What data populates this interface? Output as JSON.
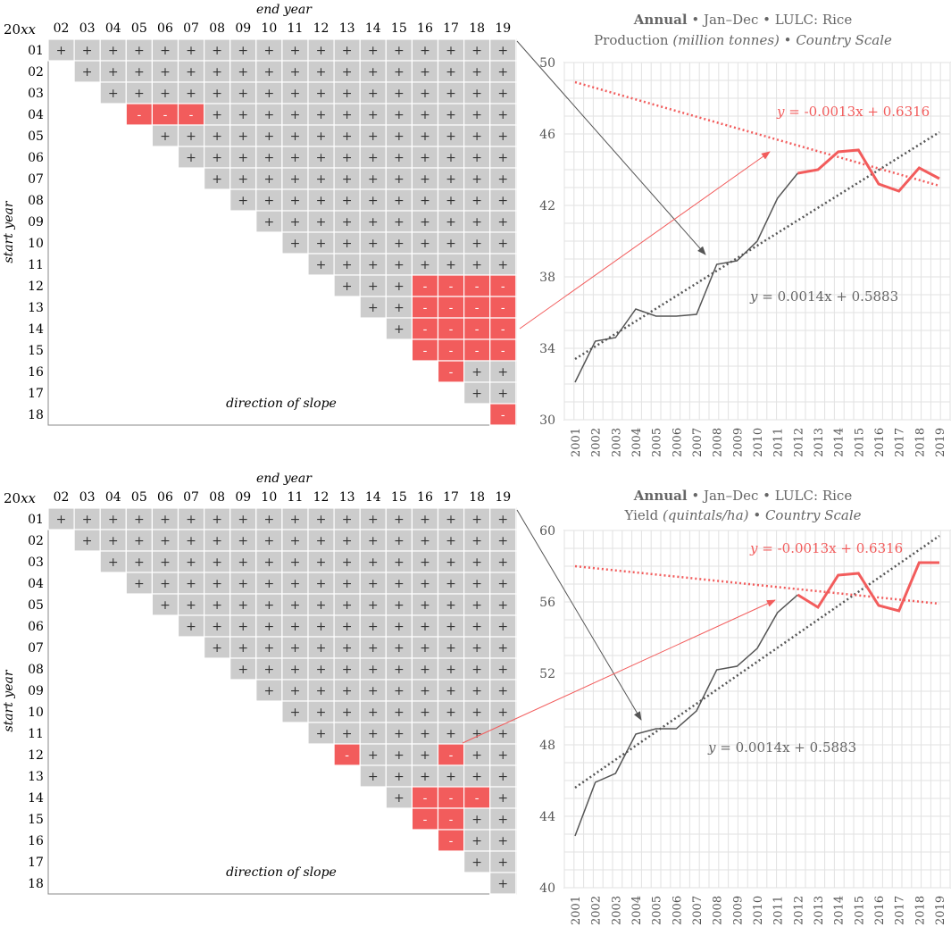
{
  "corner_label": "20",
  "corner_label_italic": "xx",
  "chart_data": [
    {
      "type": "heatmap",
      "title": "direction of slope",
      "xlabel": "end year",
      "ylabel": "start year",
      "x_ticks": [
        "02",
        "03",
        "04",
        "05",
        "06",
        "07",
        "08",
        "09",
        "10",
        "11",
        "12",
        "13",
        "14",
        "15",
        "16",
        "17",
        "18",
        "19"
      ],
      "y_ticks": [
        "01",
        "02",
        "03",
        "04",
        "05",
        "06",
        "07",
        "08",
        "09",
        "10",
        "11",
        "12",
        "13",
        "14",
        "15",
        "16",
        "17",
        "18"
      ],
      "neg_cells": [
        [
          4,
          5
        ],
        [
          4,
          6
        ],
        [
          4,
          7
        ],
        [
          12,
          16
        ],
        [
          12,
          17
        ],
        [
          12,
          18
        ],
        [
          12,
          19
        ],
        [
          13,
          16
        ],
        [
          13,
          17
        ],
        [
          13,
          18
        ],
        [
          13,
          19
        ],
        [
          14,
          16
        ],
        [
          14,
          17
        ],
        [
          14,
          18
        ],
        [
          14,
          19
        ],
        [
          15,
          16
        ],
        [
          15,
          17
        ],
        [
          15,
          18
        ],
        [
          15,
          19
        ],
        [
          16,
          17
        ],
        [
          18,
          19
        ]
      ],
      "pos_symbol": "+",
      "neg_symbol": "-",
      "colors": {
        "positive": "#cccccc",
        "negative": "#f25c5c"
      }
    },
    {
      "type": "line",
      "title_bold": "Annual",
      "title_rest": "• Jan–Dec • LULC: Rice",
      "subtitle_plain": "Production",
      "subtitle_italic": "(million tonnes)",
      "subtitle_sep": "•",
      "subtitle_italic2": "Country Scale",
      "x": [
        "2001",
        "2002",
        "2003",
        "2004",
        "2005",
        "2006",
        "2007",
        "2008",
        "2009",
        "2010",
        "2011",
        "2012",
        "2013",
        "2014",
        "2015",
        "2016",
        "2017",
        "2018",
        "2019"
      ],
      "y_ticks": [
        "30",
        "34",
        "38",
        "42",
        "46",
        "50"
      ],
      "ylim": [
        30,
        50
      ],
      "series": [
        {
          "name": "production",
          "x": [
            2001,
            2002,
            2003,
            2004,
            2005,
            2006,
            2007,
            2008,
            2009,
            2010,
            2011,
            2012,
            2013,
            2014,
            2015,
            2016,
            2017,
            2018,
            2019
          ],
          "values": [
            32.1,
            34.4,
            34.6,
            36.2,
            35.8,
            35.8,
            35.9,
            38.7,
            38.9,
            40.0,
            42.4,
            43.8,
            44.0,
            45.0,
            45.1,
            43.2,
            42.8,
            44.1,
            43.5
          ]
        },
        {
          "name": "trend-up",
          "x": [
            2001,
            2019
          ],
          "values": [
            33.4,
            46.1
          ]
        },
        {
          "name": "trend-down",
          "x": [
            2001,
            2019
          ],
          "values": [
            48.9,
            43.1
          ]
        }
      ],
      "eq_red": "-0.0013x + 0.6316",
      "eq_black": "0.0014x + 0.5883",
      "eq_var": "y = ",
      "colors": {
        "main": "#555555",
        "highlight": "#f25c5c",
        "trend": "#555555"
      }
    },
    {
      "type": "heatmap",
      "title": "direction of slope",
      "xlabel": "end year",
      "ylabel": "start year",
      "x_ticks": [
        "02",
        "03",
        "04",
        "05",
        "06",
        "07",
        "08",
        "09",
        "10",
        "11",
        "12",
        "13",
        "14",
        "15",
        "16",
        "17",
        "18",
        "19"
      ],
      "y_ticks": [
        "01",
        "02",
        "03",
        "04",
        "05",
        "06",
        "07",
        "08",
        "09",
        "10",
        "11",
        "12",
        "13",
        "14",
        "15",
        "16",
        "17",
        "18"
      ],
      "neg_cells": [
        [
          12,
          13
        ],
        [
          12,
          17
        ],
        [
          14,
          16
        ],
        [
          14,
          17
        ],
        [
          14,
          18
        ],
        [
          15,
          16
        ],
        [
          15,
          17
        ],
        [
          16,
          17
        ]
      ],
      "pos_symbol": "+",
      "neg_symbol": "-",
      "colors": {
        "positive": "#cccccc",
        "negative": "#f25c5c"
      }
    },
    {
      "type": "line",
      "title_bold": "Annual",
      "title_rest": "• Jan–Dec • LULC: Rice",
      "subtitle_plain": "Yield",
      "subtitle_italic": "(quintals/ha)",
      "subtitle_sep": "•",
      "subtitle_italic2": "Country Scale",
      "x": [
        "2001",
        "2002",
        "2003",
        "2004",
        "2005",
        "2006",
        "2007",
        "2008",
        "2009",
        "2010",
        "2011",
        "2012",
        "2013",
        "2014",
        "2015",
        "2016",
        "2017",
        "2018",
        "2019"
      ],
      "y_ticks": [
        "40",
        "44",
        "48",
        "52",
        "56",
        "60"
      ],
      "ylim": [
        40,
        60
      ],
      "series": [
        {
          "name": "yield",
          "x": [
            2001,
            2002,
            2003,
            2004,
            2005,
            2006,
            2007,
            2008,
            2009,
            2010,
            2011,
            2012,
            2013,
            2014,
            2015,
            2016,
            2017,
            2018,
            2019
          ],
          "values": [
            42.9,
            45.9,
            46.4,
            48.6,
            48.9,
            48.9,
            49.9,
            52.2,
            52.4,
            53.4,
            55.4,
            56.4,
            55.7,
            57.5,
            57.6,
            55.8,
            55.5,
            58.2,
            58.2
          ]
        },
        {
          "name": "trend-up",
          "x": [
            2001,
            2019
          ],
          "values": [
            45.6,
            59.7
          ]
        },
        {
          "name": "trend-down",
          "x": [
            2001,
            2019
          ],
          "values": [
            58.0,
            55.9
          ]
        }
      ],
      "eq_red": "-0.0013x + 0.6316",
      "eq_black": "0.0014x + 0.5883",
      "eq_var": "y = ",
      "colors": {
        "main": "#555555",
        "highlight": "#f25c5c",
        "trend": "#555555"
      }
    }
  ]
}
